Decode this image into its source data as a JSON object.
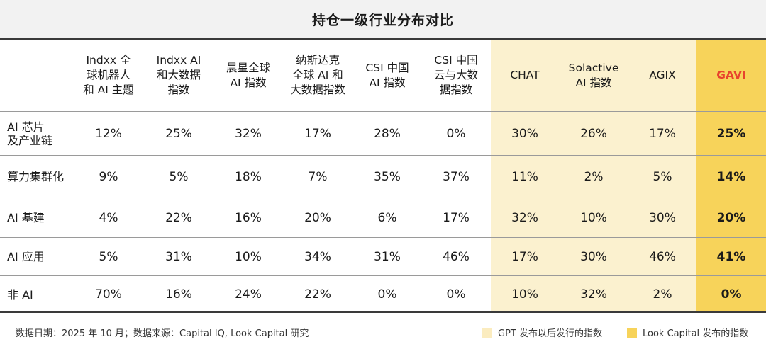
{
  "title": "持仓一级行业分布对比",
  "table": {
    "columns": [
      "",
      "Indxx 全\n球机器人\n和 AI 主题",
      "Indxx AI\n和大数据\n指数",
      "晨星全球\nAI 指数",
      "纳斯达克\n全球 AI 和\n大数据指数",
      "CSI 中国\nAI 指数",
      "CSI 中国\n云与大数\n据指数",
      "CHAT",
      "Solactive\nAI 指数",
      "AGIX",
      "GAVI"
    ],
    "rows": [
      {
        "label": "AI 芯片\n及产业链",
        "values": [
          "12%",
          "25%",
          "32%",
          "17%",
          "28%",
          "0%",
          "30%",
          "26%",
          "17%",
          "25%"
        ]
      },
      {
        "label": "算力集群化",
        "values": [
          "9%",
          "5%",
          "18%",
          "7%",
          "35%",
          "37%",
          "11%",
          "2%",
          "5%",
          "14%"
        ]
      },
      {
        "label": "AI 基建",
        "values": [
          "4%",
          "22%",
          "16%",
          "20%",
          "6%",
          "17%",
          "32%",
          "10%",
          "30%",
          "20%"
        ]
      },
      {
        "label": "AI 应用",
        "values": [
          "5%",
          "31%",
          "10%",
          "34%",
          "31%",
          "46%",
          "17%",
          "30%",
          "46%",
          "41%"
        ]
      },
      {
        "label": "非 AI",
        "values": [
          "70%",
          "16%",
          "24%",
          "22%",
          "0%",
          "0%",
          "10%",
          "32%",
          "2%",
          "0%"
        ]
      }
    ]
  },
  "footer": {
    "note": "数据日期：2025 年 10 月；数据来源：Capital IQ, Look Capital 研究",
    "legend": [
      {
        "label": "GPT 发布以后发行的指数",
        "color": "#fbecbf"
      },
      {
        "label": "Look Capital 发布的指数",
        "color": "#f7d35a"
      }
    ]
  },
  "colors": {
    "gpt_column_bg": "#fbf1cf",
    "look_column_bg": "#f7d35a",
    "gavi_header": "#e8432d"
  }
}
